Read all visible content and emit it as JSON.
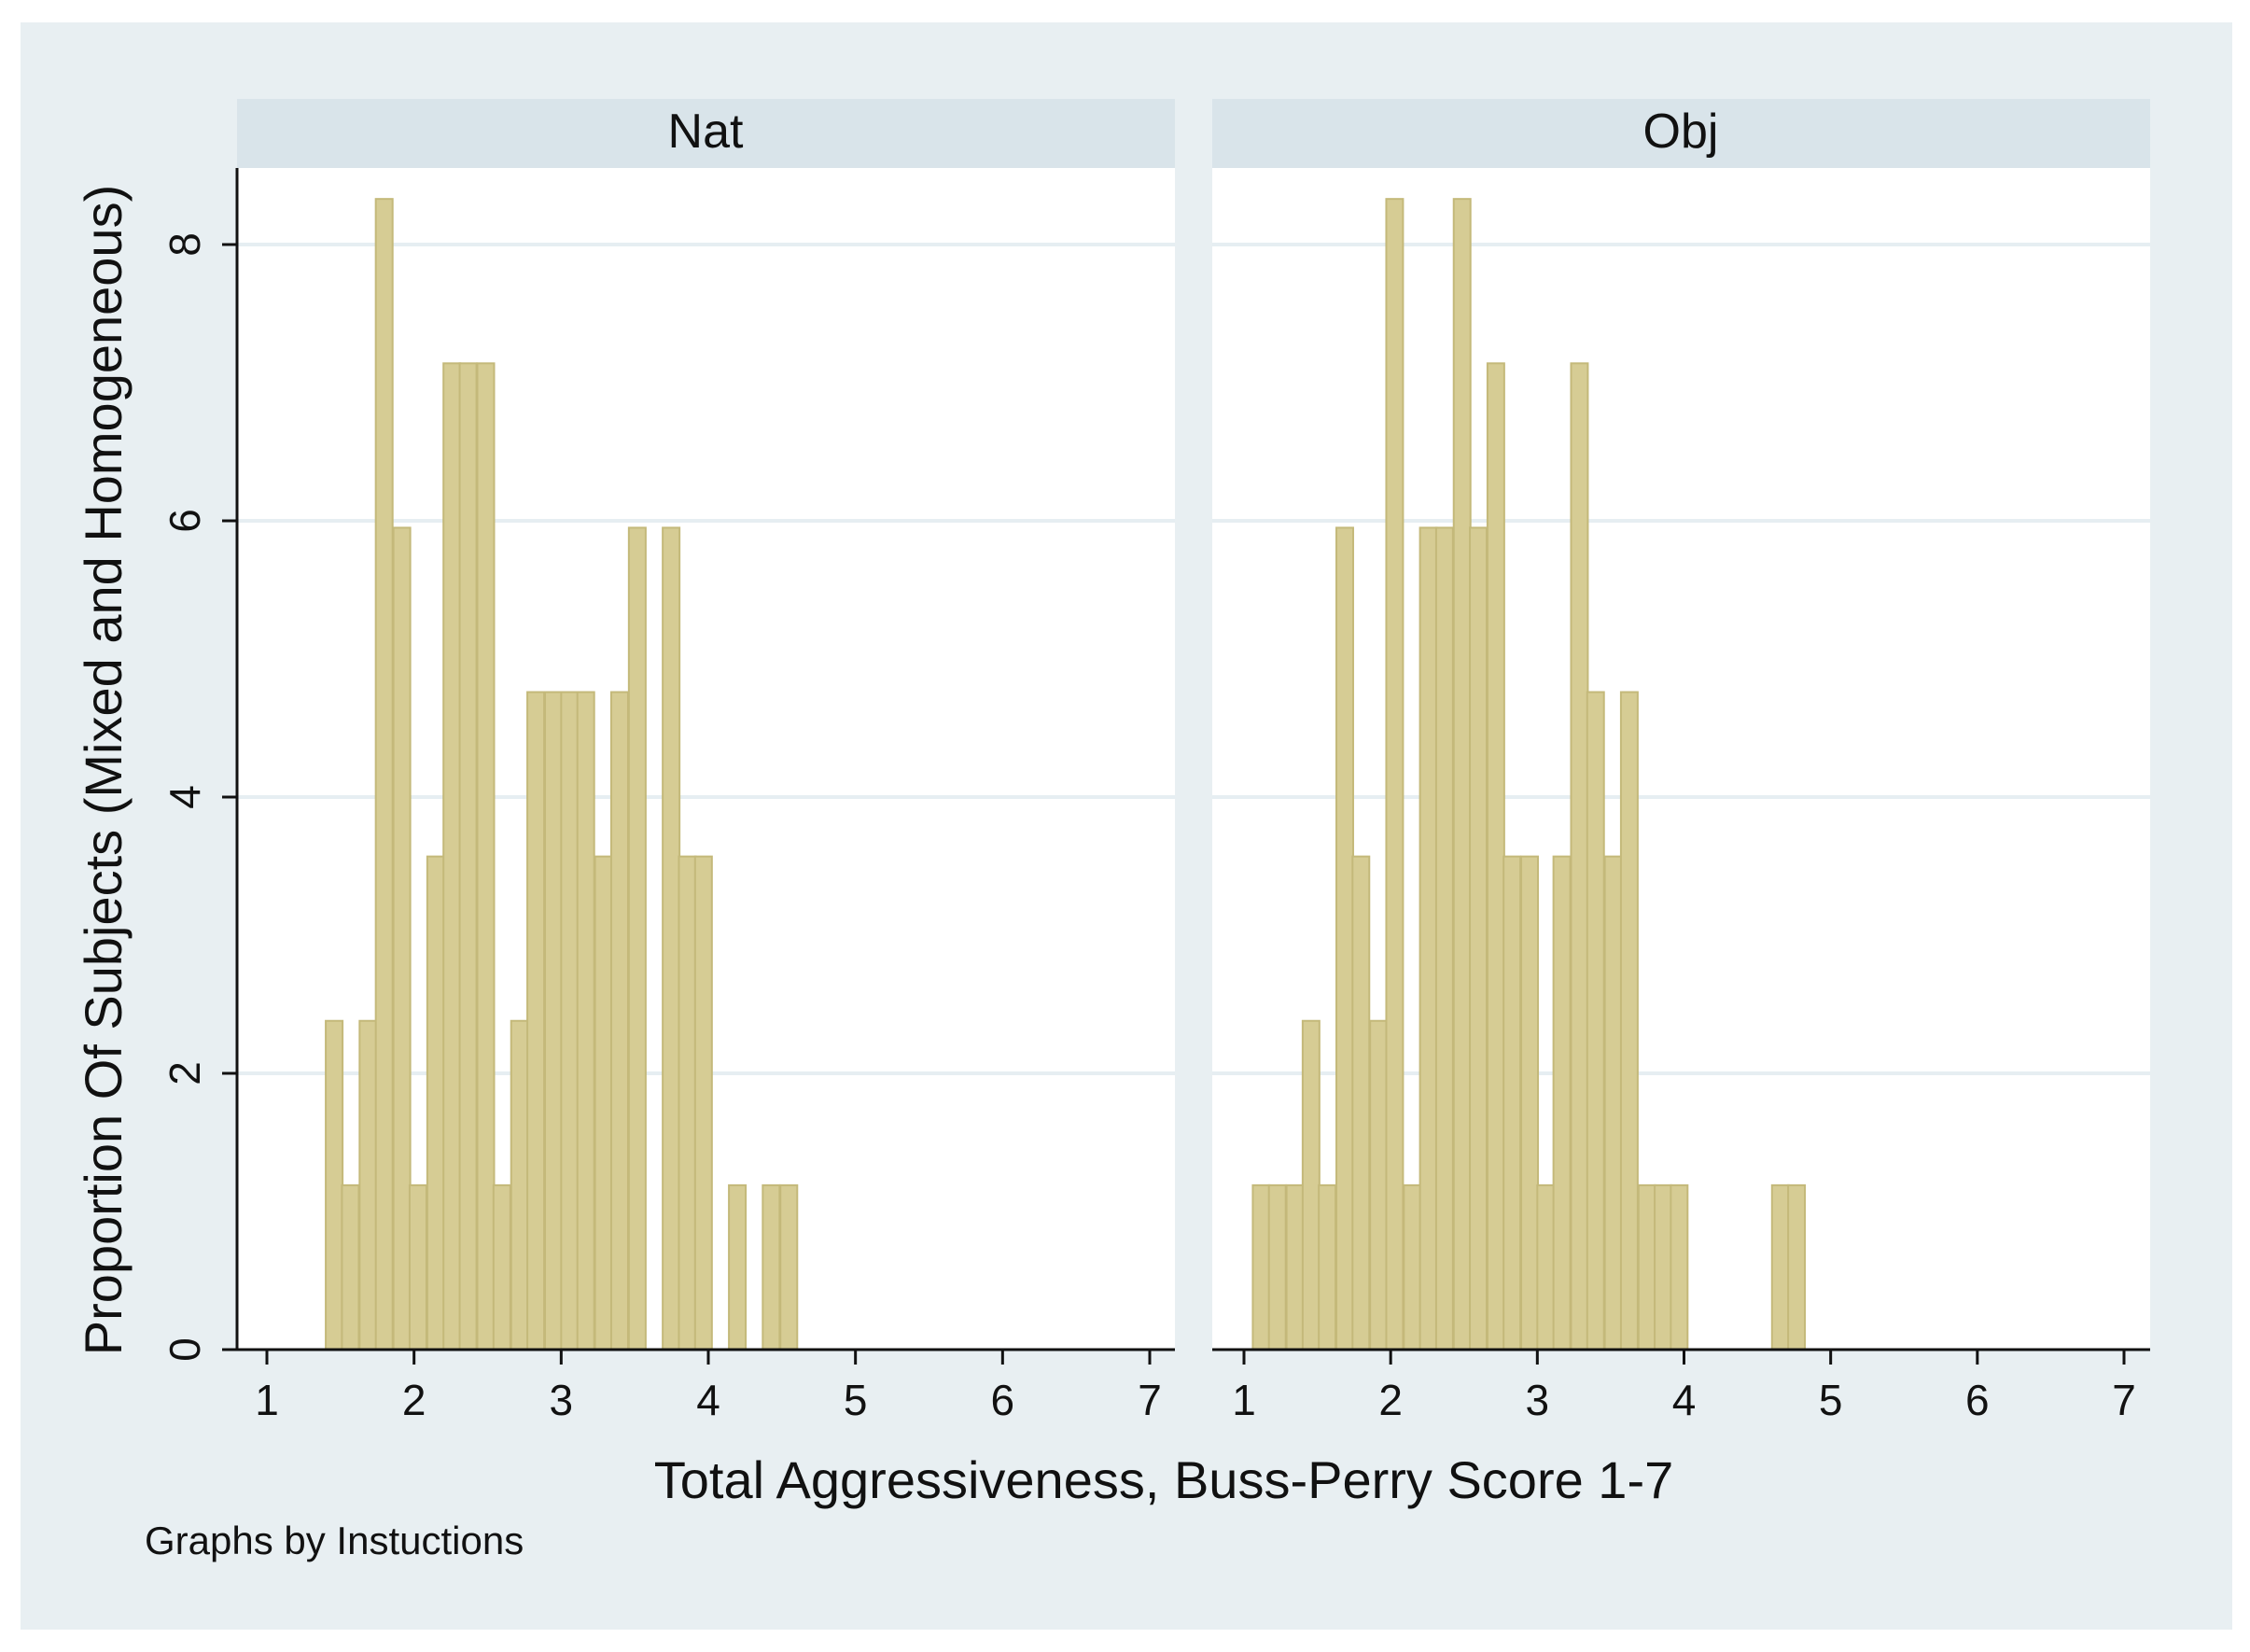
{
  "chart_data": {
    "type": "bar",
    "xlabel": "Total Aggressiveness, Buss-Perry Score 1-7",
    "ylabel": "Proportion Of Subjects (Mixed and Homogeneous)",
    "note": "Graphs by Instuctions",
    "xlim": [
      1,
      7
    ],
    "ylim": [
      0,
      8.5
    ],
    "xticks": [
      "1",
      "2",
      "3",
      "4",
      "5",
      "6",
      "7"
    ],
    "yticks": [
      "0",
      "2",
      "4",
      "6",
      "8"
    ],
    "grid": true,
    "colors": {
      "bar_fill": "#d6cc94",
      "bar_edge": "#c4b97a",
      "panel_header": "#d9e4ea",
      "outer_bg": "#e8eff2",
      "gridline": "#e6eef2"
    },
    "bin_width": 0.1143,
    "panels": [
      {
        "title": "Nat",
        "bins": [
          {
            "x0": 1.4,
            "value": 2.38
          },
          {
            "x0": 1.51,
            "value": 1.19
          },
          {
            "x0": 1.63,
            "value": 2.38
          },
          {
            "x0": 1.74,
            "value": 8.33
          },
          {
            "x0": 1.86,
            "value": 5.95
          },
          {
            "x0": 1.97,
            "value": 1.19
          },
          {
            "x0": 2.09,
            "value": 3.57
          },
          {
            "x0": 2.2,
            "value": 7.14
          },
          {
            "x0": 2.31,
            "value": 7.14
          },
          {
            "x0": 2.43,
            "value": 7.14
          },
          {
            "x0": 2.54,
            "value": 1.19
          },
          {
            "x0": 2.66,
            "value": 2.38
          },
          {
            "x0": 2.77,
            "value": 4.76
          },
          {
            "x0": 2.89,
            "value": 4.76
          },
          {
            "x0": 3.0,
            "value": 4.76
          },
          {
            "x0": 3.11,
            "value": 4.76
          },
          {
            "x0": 3.23,
            "value": 3.57
          },
          {
            "x0": 3.34,
            "value": 4.76
          },
          {
            "x0": 3.46,
            "value": 5.95
          },
          {
            "x0": 3.69,
            "value": 5.95
          },
          {
            "x0": 3.8,
            "value": 3.57
          },
          {
            "x0": 3.91,
            "value": 3.57
          },
          {
            "x0": 4.14,
            "value": 1.19
          },
          {
            "x0": 4.37,
            "value": 1.19
          },
          {
            "x0": 4.49,
            "value": 1.19
          }
        ]
      },
      {
        "title": "Obj",
        "bins": [
          {
            "x0": 1.06,
            "value": 1.19
          },
          {
            "x0": 1.17,
            "value": 1.19
          },
          {
            "x0": 1.29,
            "value": 1.19
          },
          {
            "x0": 1.4,
            "value": 2.38
          },
          {
            "x0": 1.51,
            "value": 1.19
          },
          {
            "x0": 1.63,
            "value": 5.95
          },
          {
            "x0": 1.74,
            "value": 3.57
          },
          {
            "x0": 1.86,
            "value": 2.38
          },
          {
            "x0": 1.97,
            "value": 8.33
          },
          {
            "x0": 2.09,
            "value": 1.19
          },
          {
            "x0": 2.2,
            "value": 5.95
          },
          {
            "x0": 2.31,
            "value": 5.95
          },
          {
            "x0": 2.43,
            "value": 8.33
          },
          {
            "x0": 2.54,
            "value": 5.95
          },
          {
            "x0": 2.66,
            "value": 7.14
          },
          {
            "x0": 2.77,
            "value": 3.57
          },
          {
            "x0": 2.89,
            "value": 3.57
          },
          {
            "x0": 3.0,
            "value": 1.19
          },
          {
            "x0": 3.11,
            "value": 3.57
          },
          {
            "x0": 3.23,
            "value": 7.14
          },
          {
            "x0": 3.34,
            "value": 4.76
          },
          {
            "x0": 3.46,
            "value": 3.57
          },
          {
            "x0": 3.57,
            "value": 4.76
          },
          {
            "x0": 3.69,
            "value": 1.19
          },
          {
            "x0": 3.8,
            "value": 1.19
          },
          {
            "x0": 3.91,
            "value": 1.19
          },
          {
            "x0": 4.6,
            "value": 1.19
          },
          {
            "x0": 4.71,
            "value": 1.19
          }
        ]
      }
    ]
  }
}
